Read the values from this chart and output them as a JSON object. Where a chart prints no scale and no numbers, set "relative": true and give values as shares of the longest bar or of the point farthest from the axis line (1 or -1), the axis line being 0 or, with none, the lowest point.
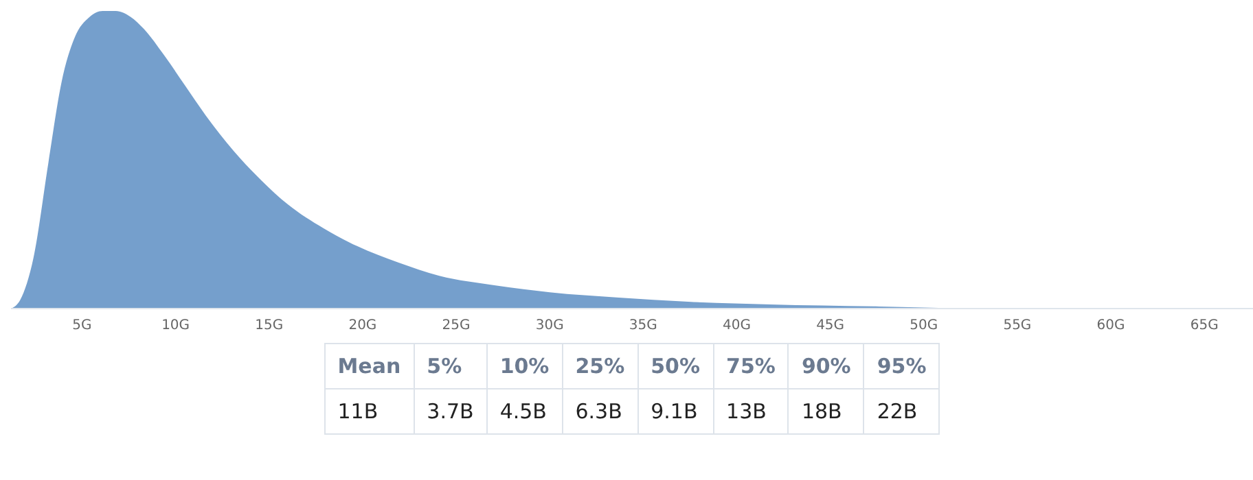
{
  "chart_data": {
    "type": "area",
    "relative": true,
    "color": "#759fcc",
    "x": [
      1.2,
      1.7,
      2.4,
      3.2,
      3.9,
      4.6,
      5.4,
      6.1,
      6.8,
      7.6,
      8.3,
      9.4,
      10.5,
      11.6,
      13.1,
      14.6,
      16.0,
      17.9,
      19.7,
      21.9,
      24.1,
      27.1,
      30.0,
      33.7,
      37.4,
      41.8,
      47.6,
      52.4
    ],
    "values": [
      0,
      0.03,
      0.17,
      0.49,
      0.76,
      0.91,
      0.98,
      1.0,
      1.0,
      0.98,
      0.94,
      0.85,
      0.75,
      0.65,
      0.53,
      0.43,
      0.35,
      0.27,
      0.21,
      0.155,
      0.11,
      0.078,
      0.055,
      0.037,
      0.023,
      0.014,
      0.007,
      0
    ],
    "xlim": [
      1.2,
      67.6
    ],
    "xticks": [
      {
        "value": 5,
        "label": "5G"
      },
      {
        "value": 10,
        "label": "10G"
      },
      {
        "value": 15,
        "label": "15G"
      },
      {
        "value": 20,
        "label": "20G"
      },
      {
        "value": 25,
        "label": "25G"
      },
      {
        "value": 30,
        "label": "30G"
      },
      {
        "value": 35,
        "label": "35G"
      },
      {
        "value": 40,
        "label": "40G"
      },
      {
        "value": 45,
        "label": "45G"
      },
      {
        "value": 50,
        "label": "50G"
      },
      {
        "value": 55,
        "label": "55G"
      },
      {
        "value": 60,
        "label": "60G"
      },
      {
        "value": 65,
        "label": "65G"
      }
    ],
    "grid": false,
    "annotations": [
      "Mean",
      "5%",
      "10%",
      "25%",
      "50%",
      "75%",
      "90%",
      "95%",
      "11B",
      "3.7B",
      "4.5B",
      "6.3B",
      "9.1B",
      "13B",
      "18B",
      "22B"
    ]
  }
}
